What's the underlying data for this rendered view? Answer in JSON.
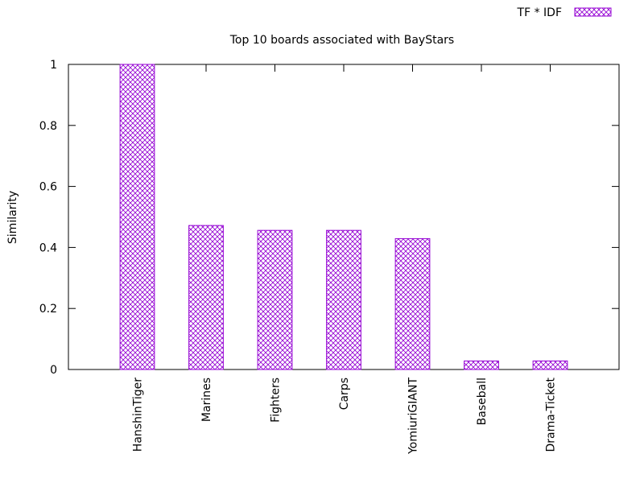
{
  "chart_data": {
    "type": "bar",
    "title": "Top 10 boards associated with BayStars",
    "xlabel": "",
    "ylabel": "Similarity",
    "ylim": [
      0,
      1
    ],
    "yticks": [
      "0",
      "0.2",
      "0.4",
      "0.6",
      "0.8",
      "1"
    ],
    "categories": [
      "HanshinTiger",
      "Marines",
      "Fighters",
      "Carps",
      "YomiuriGIANT",
      "Baseball",
      "Drama-Ticket"
    ],
    "series": [
      {
        "name": "TF * IDF",
        "values": [
          1.0,
          0.472,
          0.456,
          0.456,
          0.429,
          0.028,
          0.028
        ]
      }
    ],
    "legend_position": "top-right",
    "grid": false,
    "colors": {
      "bar_stroke": "#9400d3",
      "bar_fill": "#ffffff",
      "axis": "#000000"
    }
  }
}
